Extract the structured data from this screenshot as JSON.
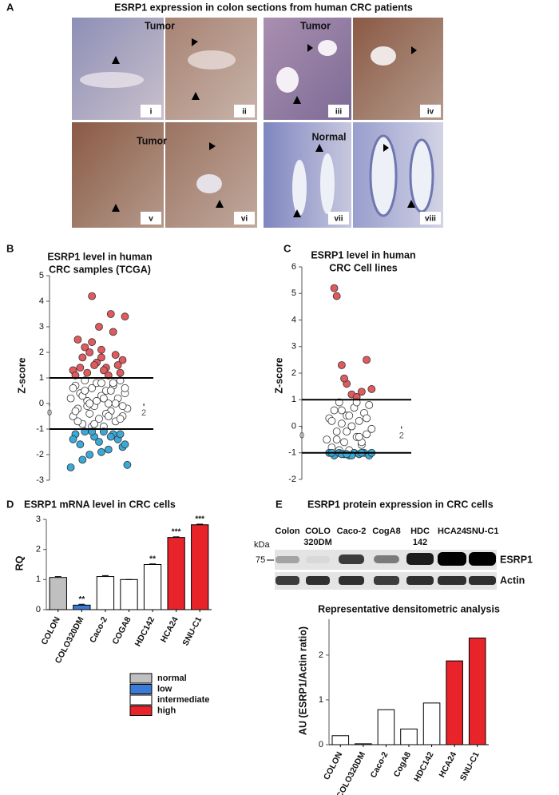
{
  "panel_labels": [
    "A",
    "B",
    "C",
    "D",
    "E"
  ],
  "histology": {
    "title": "ESRP1 expression in colon sections from human CRC patients",
    "group_labels": [
      "Tumor",
      "Tumor",
      "Tumor",
      "Normal"
    ],
    "numerals": [
      "i",
      "ii",
      "iii",
      "iv",
      "v",
      "vi",
      "vii",
      "viii"
    ]
  },
  "blot": {
    "title": "ESRP1 protein expression in CRC cells",
    "lanes": [
      [
        "Colon"
      ],
      [
        "COLO",
        "320DM"
      ],
      [
        "Caco-2"
      ],
      [
        "CogA8"
      ],
      [
        "HDC",
        "142"
      ],
      [
        "HCA24"
      ],
      [
        "SNU-C1"
      ]
    ],
    "unit": "kDa",
    "marker": "75",
    "bands": [
      "ESRP1",
      "Actin"
    ]
  },
  "chart_data": [
    {
      "type": "scatter",
      "title": [
        "ESRP1 level  in human",
        "CRC samples (TCGA)"
      ],
      "y_label": "Z-score",
      "xlim": [
        0,
        2.1
      ],
      "xticks": [
        0,
        2
      ],
      "ylim": [
        -3,
        5
      ],
      "yticks": [
        5,
        4,
        3,
        2,
        1,
        0,
        -1,
        -2,
        -3
      ],
      "reference_lines": [
        1,
        -1
      ],
      "series": [
        {
          "color": "#e05a5e",
          "x": [
            0.5,
            0.6,
            0.7,
            0.8,
            0.9,
            1.0,
            1.1,
            1.2,
            1.3,
            1.4,
            1.5,
            1.6,
            0.55,
            0.75,
            0.95,
            1.15,
            1.35,
            1.55,
            0.65,
            0.85,
            1.05,
            1.25,
            1.45,
            0.9,
            1.1
          ],
          "y": [
            1.3,
            2.5,
            1.8,
            1.2,
            4.2,
            1.6,
            2.1,
            1.4,
            3.5,
            1.9,
            1.2,
            3.4,
            1.1,
            2.2,
            1.5,
            1.3,
            2.8,
            1.7,
            1.4,
            2.0,
            3.0,
            1.1,
            1.5,
            2.4,
            1.8
          ]
        },
        {
          "color": "#ffffff",
          "x": [
            0.45,
            0.5,
            0.55,
            0.6,
            0.65,
            0.7,
            0.75,
            0.8,
            0.85,
            0.9,
            0.95,
            1.0,
            1.05,
            1.1,
            1.15,
            1.2,
            1.25,
            1.3,
            1.35,
            1.4,
            1.45,
            1.5,
            1.55,
            1.6,
            1.65,
            0.5,
            0.6,
            0.7,
            0.8,
            0.9,
            1.0,
            1.1,
            1.2,
            1.3,
            1.4,
            1.5,
            1.6,
            0.55,
            0.75,
            0.95,
            1.15,
            1.35,
            1.55,
            0.85,
            1.25
          ],
          "y": [
            0.2,
            -0.5,
            0.7,
            -0.2,
            0.4,
            -0.8,
            0.9,
            0.1,
            -0.4,
            0.6,
            -0.1,
            0.8,
            -0.6,
            0.3,
            -0.9,
            0.5,
            0.0,
            -0.3,
            0.7,
            -0.7,
            0.2,
            0.9,
            -0.5,
            0.4,
            -0.2,
            0.6,
            -0.7,
            0.3,
            -0.1,
            -0.9,
            0.1,
            0.8,
            -0.4,
            0.5,
            0.0,
            -0.6,
            0.6,
            -0.3,
            0.5,
            -0.8,
            0.2,
            0.8,
            -0.1,
            0.0,
            -0.5
          ]
        },
        {
          "color": "#3aa9d8",
          "x": [
            0.45,
            0.55,
            0.65,
            0.75,
            0.85,
            0.95,
            1.05,
            1.15,
            1.25,
            1.35,
            1.45,
            1.55,
            1.65,
            0.5,
            0.7,
            0.9,
            1.1,
            1.3,
            1.5,
            1.6
          ],
          "y": [
            -2.5,
            -1.2,
            -1.6,
            -1.1,
            -2.0,
            -1.3,
            -1.5,
            -1.1,
            -1.8,
            -1.2,
            -1.4,
            -1.7,
            -2.4,
            -1.4,
            -2.2,
            -1.1,
            -1.9,
            -1.3,
            -1.2,
            -1.6
          ]
        }
      ]
    },
    {
      "type": "scatter",
      "title": [
        "ESRP1 level in human",
        "CRC Cell lines"
      ],
      "y_label": "Z-score",
      "xlim": [
        0,
        2.1
      ],
      "xticks": [
        0,
        2
      ],
      "ylim": [
        -2,
        6
      ],
      "yticks": [
        6,
        5,
        4,
        3,
        2,
        1,
        0,
        -1,
        -2
      ],
      "reference_lines": [
        1,
        -1
      ],
      "series": [
        {
          "color": "#e05a5e",
          "x": [
            0.65,
            0.7,
            0.8,
            0.9,
            1.0,
            1.1,
            1.3,
            1.4,
            0.85,
            1.2
          ],
          "y": [
            5.2,
            4.9,
            2.3,
            1.6,
            1.2,
            1.1,
            2.5,
            1.4,
            1.8,
            1.3
          ]
        },
        {
          "color": "#ffffff",
          "x": [
            0.5,
            0.55,
            0.6,
            0.65,
            0.7,
            0.75,
            0.8,
            0.85,
            0.9,
            0.95,
            1.0,
            1.05,
            1.1,
            1.15,
            1.2,
            1.25,
            1.3,
            1.35,
            1.4,
            0.6,
            0.7,
            0.8,
            0.9,
            1.0,
            1.1,
            1.2,
            1.3,
            0.75,
            0.95,
            1.15
          ],
          "y": [
            -0.5,
            0.3,
            -0.8,
            0.6,
            -0.2,
            0.9,
            0.1,
            -0.6,
            0.4,
            -0.9,
            0.0,
            0.7,
            -0.4,
            0.2,
            -0.7,
            0.5,
            -0.3,
            0.8,
            -0.1,
            0.2,
            -0.5,
            0.6,
            -0.2,
            0.0,
            0.9,
            -0.6,
            0.3,
            -0.9,
            0.4,
            -0.4
          ]
        },
        {
          "color": "#3aa9d8",
          "x": [
            0.55,
            0.65,
            0.75,
            0.85,
            0.95,
            1.05,
            1.15,
            1.25,
            1.35,
            0.6,
            0.8,
            1.0,
            1.2,
            1.4,
            0.9
          ],
          "y": [
            -1.0,
            -1.1,
            -1.0,
            -1.05,
            -1.1,
            -1.0,
            -1.05,
            -1.0,
            -1.1,
            -1.0,
            -1.05,
            -1.1,
            -1.0,
            -1.0,
            -1.05
          ]
        }
      ]
    },
    {
      "type": "bar",
      "title": "ESRP1 mRNA level in CRC cells",
      "y_label": "RQ",
      "categories": [
        "COLON",
        "COLO320DM",
        "Caco-2",
        "COGA8",
        "HDC142",
        "HCA24",
        "SNU-C1"
      ],
      "values": [
        1.07,
        0.15,
        1.1,
        1.0,
        1.5,
        2.4,
        2.82
      ],
      "errors": [
        0.03,
        0.03,
        0.03,
        0,
        0.02,
        0.02,
        0.02
      ],
      "annotations": [
        null,
        "**",
        null,
        null,
        "**",
        "***",
        "***"
      ],
      "colors": [
        "#c0c0c0",
        "#3a7bd5",
        "#ffffff",
        "#ffffff",
        "#ffffff",
        "#e8232a",
        "#e8232a"
      ],
      "ylim": [
        0,
        3
      ],
      "yticks": [
        0,
        1,
        2,
        3
      ],
      "legend": [
        {
          "name": "normal",
          "color": "#c0c0c0"
        },
        {
          "name": "low",
          "color": "#3a7bd5"
        },
        {
          "name": "intermediate",
          "color": "#ffffff"
        },
        {
          "name": "high",
          "color": "#e8232a"
        }
      ]
    },
    {
      "type": "bar",
      "title": "Representative densitometric analysis",
      "y_label": "AU (ESRP1/Actin ratio)",
      "categories": [
        "COLON",
        "COLO320DM",
        "Caco-2",
        "CogA8",
        "HDC142",
        "HCA24",
        "SNU-C1"
      ],
      "values": [
        0.2,
        0.02,
        0.78,
        0.35,
        0.93,
        1.87,
        2.38
      ],
      "colors": [
        "#ffffff",
        "#ffffff",
        "#ffffff",
        "#ffffff",
        "#ffffff",
        "#e8232a",
        "#e8232a"
      ],
      "ylim": [
        0,
        2.8
      ],
      "yticks": [
        0,
        1,
        2
      ]
    }
  ]
}
